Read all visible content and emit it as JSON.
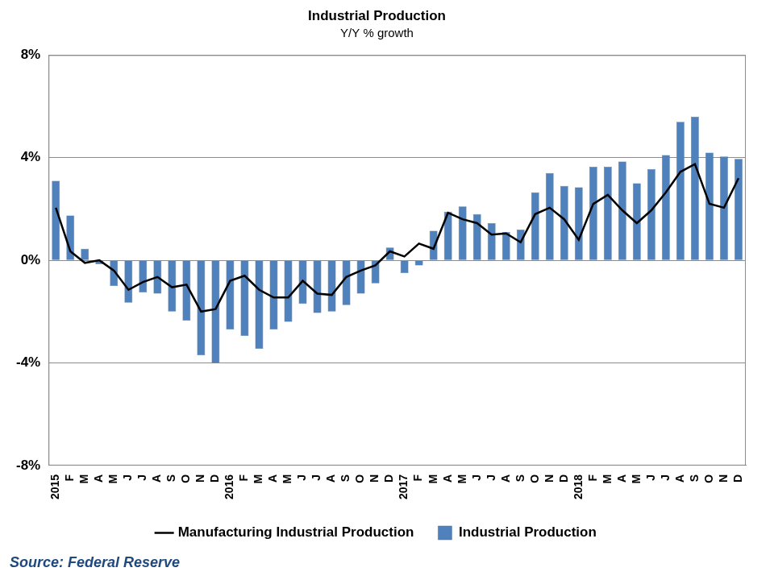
{
  "chart_data": {
    "type": "bar",
    "title": "Industrial Production",
    "subtitle": "Y/Y % growth",
    "source": "Source: Federal Reserve",
    "categories": [
      "2015",
      "F",
      "M",
      "A",
      "M",
      "J",
      "J",
      "A",
      "S",
      "O",
      "N",
      "D",
      "2016",
      "F",
      "M",
      "A",
      "M",
      "J",
      "J",
      "A",
      "S",
      "O",
      "N",
      "D",
      "2017",
      "F",
      "M",
      "A",
      "M",
      "J",
      "J",
      "A",
      "S",
      "O",
      "N",
      "D",
      "2018",
      "F",
      "M",
      "A",
      "M",
      "J",
      "J",
      "A",
      "S",
      "O",
      "N",
      "D"
    ],
    "series": [
      {
        "name": "Industrial Production",
        "type": "bar",
        "color": "#4f81bd",
        "values": [
          3.1,
          1.75,
          0.45,
          -0.15,
          -1.0,
          -1.65,
          -1.25,
          -1.3,
          -2.0,
          -2.35,
          -3.7,
          -4.0,
          -2.7,
          -2.95,
          -3.45,
          -2.7,
          -2.4,
          -1.7,
          -2.05,
          -2.0,
          -1.75,
          -1.3,
          -0.9,
          0.5,
          -0.5,
          -0.2,
          1.15,
          1.9,
          2.1,
          1.8,
          1.45,
          1.1,
          1.2,
          2.65,
          3.4,
          2.9,
          2.85,
          3.65,
          3.65,
          3.85,
          3.0,
          3.55,
          4.1,
          5.4,
          5.6,
          4.2,
          4.05,
          3.95
        ]
      },
      {
        "name": "Manufacturing Industrial Production",
        "type": "line",
        "color": "#000000",
        "values": [
          2.05,
          0.35,
          -0.1,
          0.0,
          -0.4,
          -1.15,
          -0.85,
          -0.65,
          -1.05,
          -0.95,
          -2.0,
          -1.9,
          -0.8,
          -0.6,
          -1.15,
          -1.45,
          -1.45,
          -0.8,
          -1.3,
          -1.35,
          -0.65,
          -0.4,
          -0.2,
          0.35,
          0.15,
          0.65,
          0.45,
          1.85,
          1.6,
          1.45,
          1.0,
          1.05,
          0.7,
          1.8,
          2.05,
          1.6,
          0.8,
          2.2,
          2.55,
          1.95,
          1.45,
          1.95,
          2.65,
          3.45,
          3.75,
          2.2,
          2.05,
          3.2
        ]
      }
    ],
    "ylim": [
      -8,
      8
    ],
    "yticks": [
      {
        "value": -8,
        "label": "-8%"
      },
      {
        "value": -4,
        "label": "-4%"
      },
      {
        "value": 0,
        "label": "0%"
      },
      {
        "value": 4,
        "label": "4%"
      },
      {
        "value": 8,
        "label": "8%"
      }
    ],
    "grid": true,
    "legend": "bottom"
  }
}
